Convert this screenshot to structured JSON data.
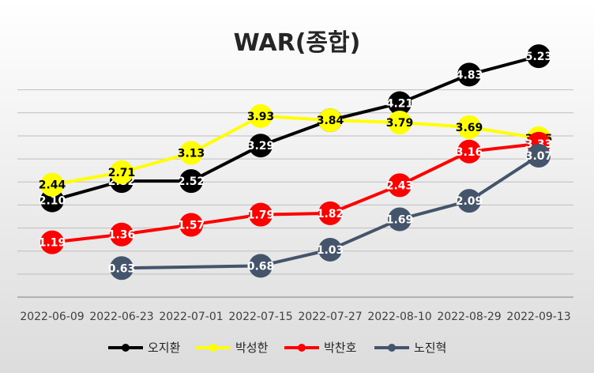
{
  "chart_data": {
    "type": "line",
    "title": "WAR(종합)",
    "xlabel": "",
    "ylabel": "",
    "categories": [
      "2022-06-09",
      "2022-06-23",
      "2022-07-01",
      "2022-07-15",
      "2022-07-27",
      "2022-08-10",
      "2022-08-29",
      "2022-09-13"
    ],
    "ylim": [
      0,
      6
    ],
    "grid": true,
    "legend_position": "bottom",
    "series": [
      {
        "name": "오지환",
        "color": "#000000",
        "label_color": "#ffffff",
        "values": [
          2.1,
          2.52,
          2.52,
          3.29,
          3.84,
          4.21,
          4.83,
          5.23
        ]
      },
      {
        "name": "박성한",
        "color": "#ffff00",
        "label_color": "#000000",
        "values": [
          2.44,
          2.71,
          3.13,
          3.93,
          3.84,
          3.79,
          3.69,
          3.45
        ]
      },
      {
        "name": "박찬호",
        "color": "#ff0000",
        "label_color": "#ffffff",
        "values": [
          1.19,
          1.36,
          1.57,
          1.79,
          1.82,
          2.43,
          3.16,
          3.33
        ]
      },
      {
        "name": "노진혁",
        "color": "#44546a",
        "label_color": "#ffffff",
        "values": [
          null,
          0.63,
          null,
          0.68,
          1.03,
          1.69,
          2.09,
          3.07
        ]
      }
    ]
  }
}
